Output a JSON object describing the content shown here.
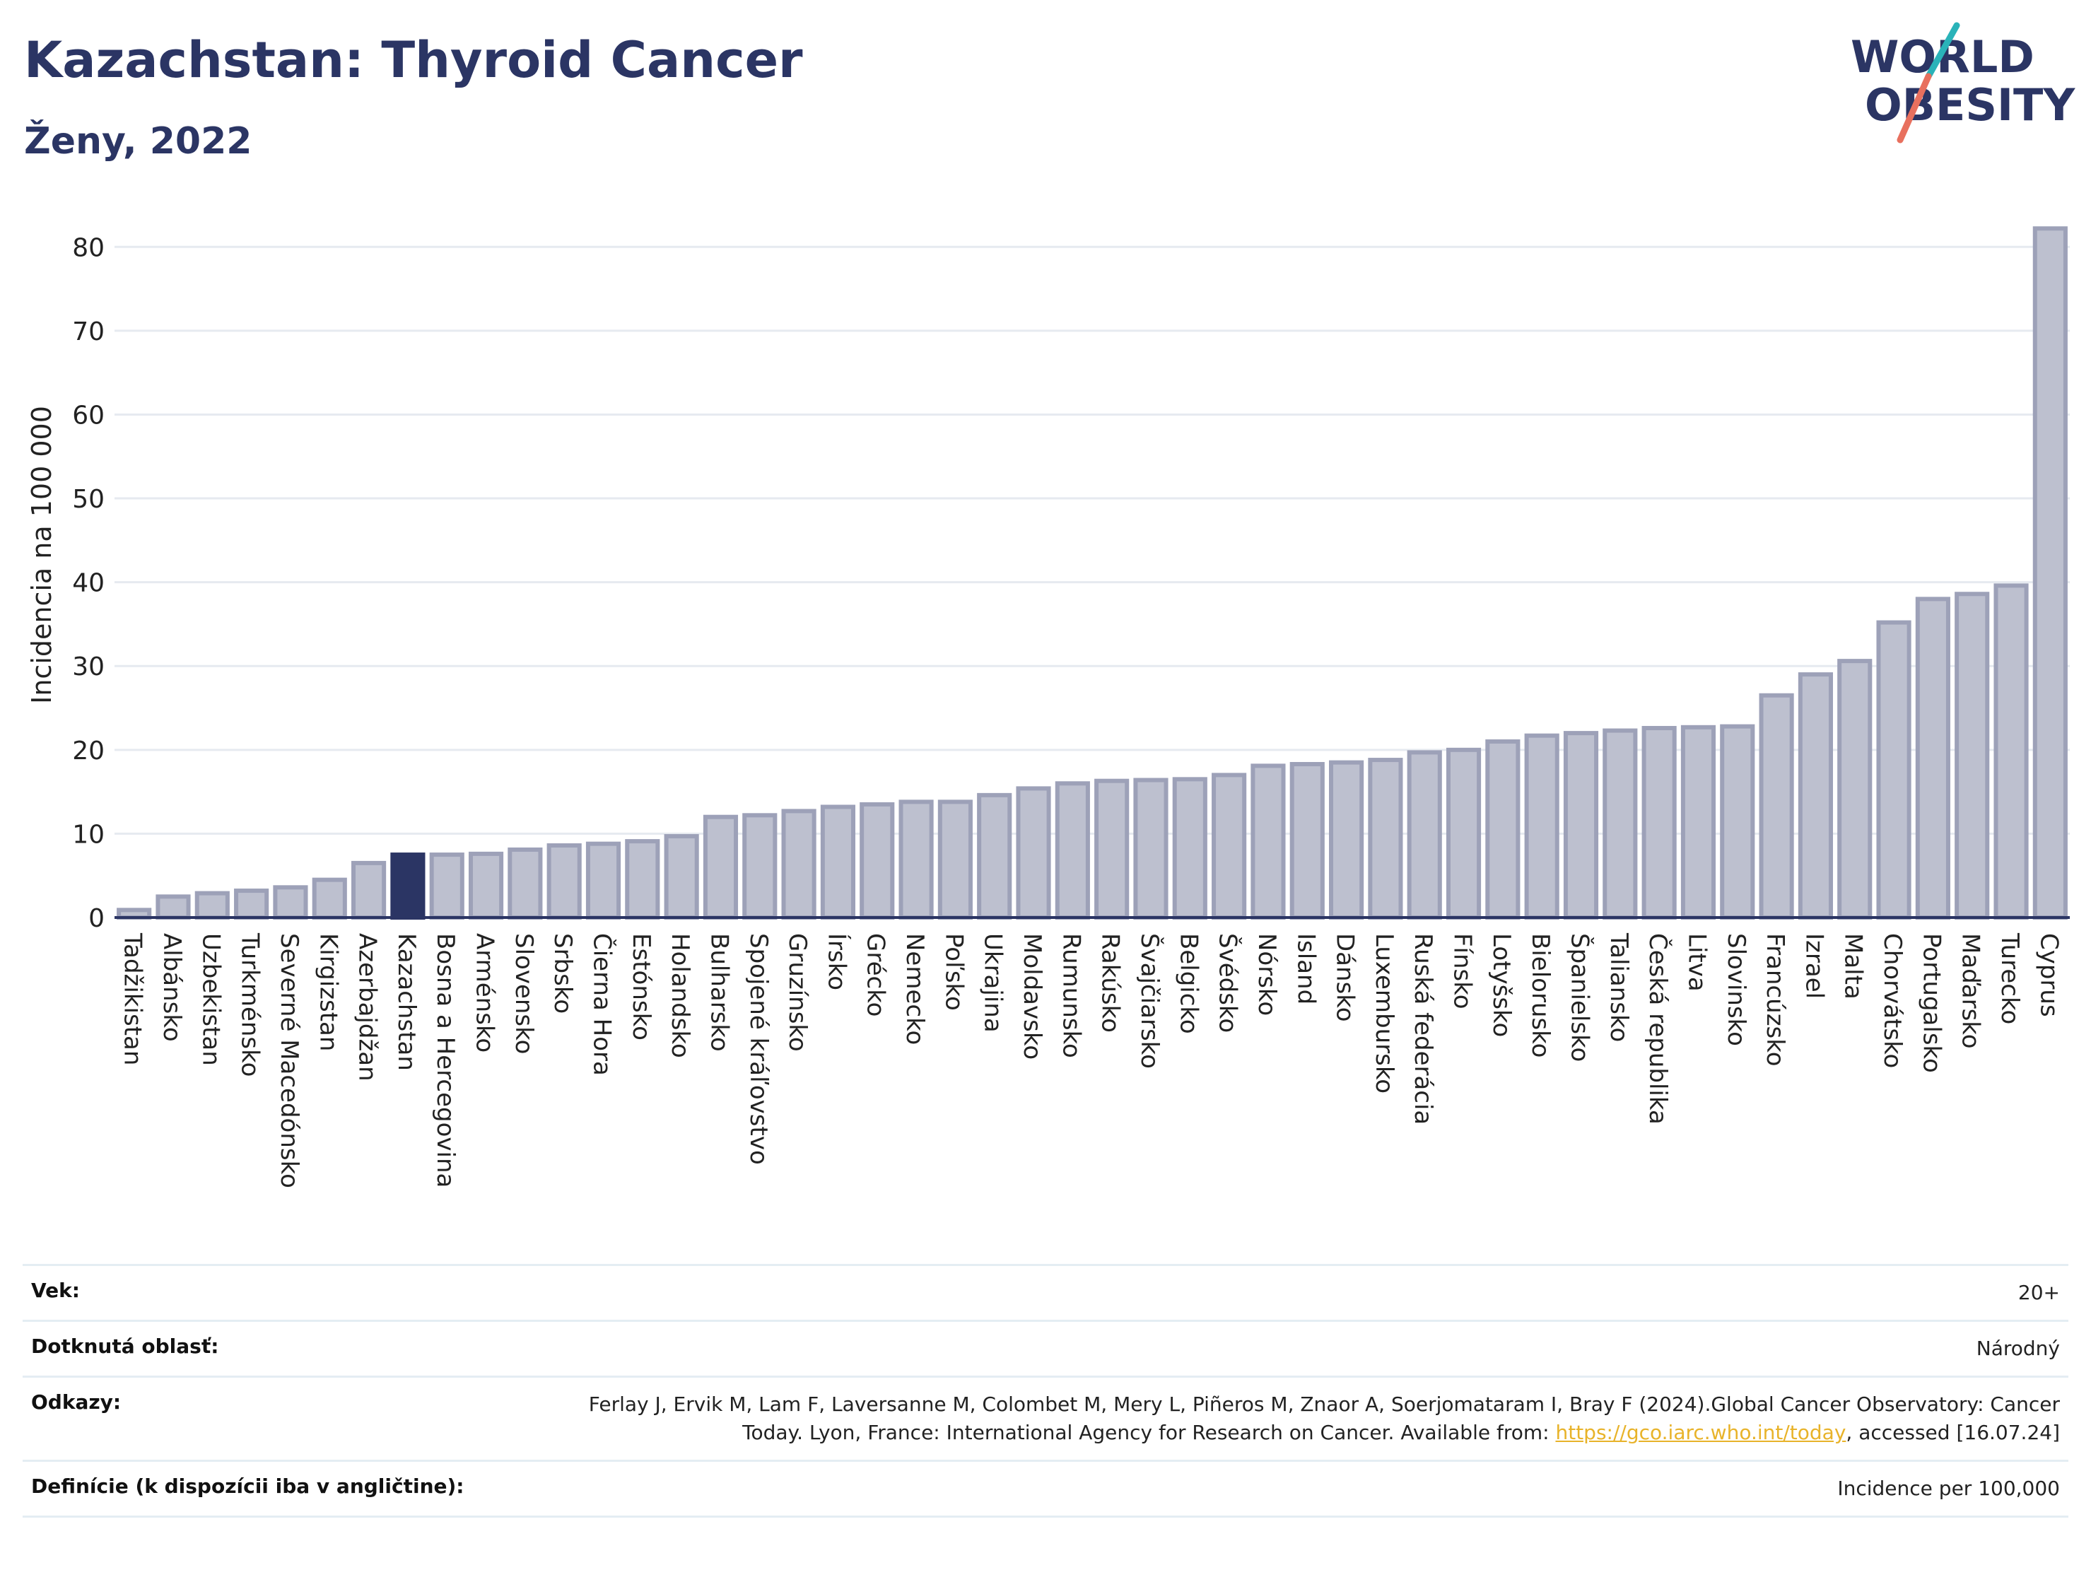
{
  "title": "Kazachstan: Thyroid Cancer",
  "subtitle": "Ženy, 2022",
  "logo": {
    "line1": "WORLD",
    "line2": "OBESITY"
  },
  "colors": {
    "bar": "#bdc0cf",
    "bar_stroke": "#9da1b8",
    "highlight": "#2b3564",
    "title": "#2b3564",
    "link": "#e8b32a"
  },
  "chart_data": {
    "type": "bar",
    "ylabel": "Incidencia na 100 000",
    "ylim": [
      0,
      85
    ],
    "yticks": [
      0,
      10,
      20,
      30,
      40,
      50,
      60,
      70,
      80
    ],
    "highlight": "Kazachstan",
    "grid": true,
    "categories": [
      "Tadžikistan",
      "Albánsko",
      "Uzbekistan",
      "Turkménsko",
      "Severné Macedónsko",
      "Kirgizstan",
      "Azerbajdžan",
      "Kazachstan",
      "Bosna a Hercegovina",
      "Arménsko",
      "Slovensko",
      "Srbsko",
      "Čierna Hora",
      "Estónsko",
      "Holandsko",
      "Bulharsko",
      "Spojené kráľovstvo",
      "Gruzínsko",
      "Írsko",
      "Grécko",
      "Nemecko",
      "Poľsko",
      "Ukrajina",
      "Moldavsko",
      "Rumunsko",
      "Rakúsko",
      "Švajčiarsko",
      "Belgicko",
      "Švédsko",
      "Nórsko",
      "Island",
      "Dánsko",
      "Luxembursko",
      "Ruská federácia",
      "Fínsko",
      "Lotyšsko",
      "Bielorusko",
      "Španielsko",
      "Taliansko",
      "Česká republika",
      "Litva",
      "Slovinsko",
      "Francúzsko",
      "Izrael",
      "Malta",
      "Chorvátsko",
      "Portugalsko",
      "Maďarsko",
      "Turecko",
      "Cyprus"
    ],
    "values": [
      0.9,
      2.5,
      2.9,
      3.2,
      3.6,
      4.5,
      6.5,
      7.5,
      7.5,
      7.6,
      8.1,
      8.6,
      8.8,
      9.1,
      9.7,
      12.0,
      12.2,
      12.7,
      13.2,
      13.5,
      13.8,
      13.8,
      14.6,
      15.4,
      16.0,
      16.3,
      16.4,
      16.5,
      17.0,
      18.1,
      18.3,
      18.5,
      18.8,
      19.7,
      20.0,
      21.0,
      21.7,
      22.0,
      22.3,
      22.6,
      22.7,
      22.8,
      26.5,
      29.0,
      30.6,
      35.2,
      38.0,
      38.6,
      39.6,
      82.2
    ]
  },
  "meta": {
    "age_label": "Vek:",
    "age_value": "20+",
    "area_label": "Dotknutá oblasť:",
    "area_value": "Národný",
    "refs_label": "Odkazy:",
    "refs_text": "Ferlay J, Ervik M, Lam F, Laversanne M, Colombet M, Mery L, Piñeros M, Znaor A, Soerjomataram I, Bray F (2024).Global Cancer Observatory: Cancer Today. Lyon, France: International Agency for Research on Cancer. Available from:",
    "refs_link": "https://gco.iarc.who.int/today",
    "refs_tail": ", accessed [16.07.24]",
    "def_label": "Definície (k dispozícii iba v angličtine):",
    "def_value": "Incidence per 100,000"
  }
}
